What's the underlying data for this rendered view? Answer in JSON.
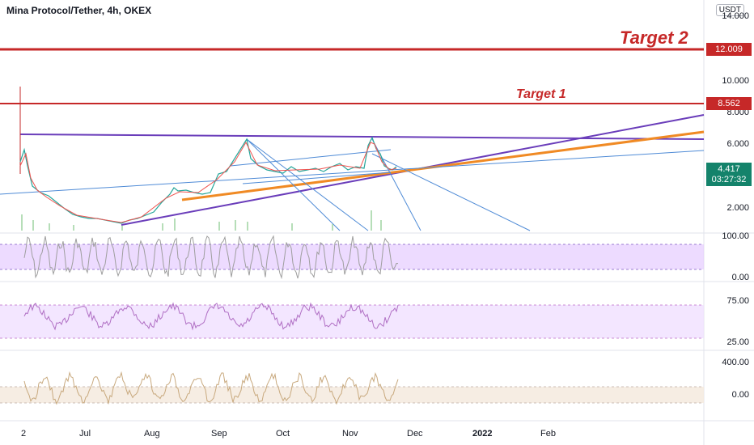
{
  "header": {
    "title": "Mina Protocol/Tether, 4h, OKEX",
    "currency": "USDT"
  },
  "price_axis": [
    "14.000",
    "10.000",
    "8.000",
    "6.000",
    "2.000"
  ],
  "rsi_axis": [
    "100.00",
    "0.00"
  ],
  "mfi_axis": [
    "75.00",
    "25.00"
  ],
  "cci_axis": [
    "400.00",
    "0.00"
  ],
  "tags": {
    "target2": "12.009",
    "target1": "8.562",
    "last_price": "4.417",
    "countdown": "03:27:32"
  },
  "annotations": {
    "target1": "Target 1",
    "target2": "Target 2"
  },
  "time_axis": [
    "2",
    "Jul",
    "Aug",
    "Sep",
    "Oct",
    "Nov",
    "Dec",
    "2022",
    "Feb"
  ],
  "colors": {
    "target_line": "#c62828",
    "purple_line": "#6a3dba",
    "orange_line": "#f08a24",
    "blue_line": "#4f8bd6",
    "osc_band": "#e6ccff",
    "mfi_band": "#f0e0ff",
    "cci_band": "#f5ebe0"
  },
  "chart_data": {
    "type": "line",
    "title": "Mina Protocol/Tether, 4h, OKEX",
    "y_unit": "USDT",
    "levels": [
      {
        "label": "Target 2",
        "value": 12.009
      },
      {
        "label": "Target 1",
        "value": 8.562
      }
    ],
    "last_price": 4.417,
    "x_ticks": [
      "2",
      "Jul",
      "Aug",
      "Sep",
      "Oct",
      "Nov",
      "Dec",
      "2022",
      "Feb"
    ],
    "ylim": [
      0.5,
      14
    ]
  }
}
